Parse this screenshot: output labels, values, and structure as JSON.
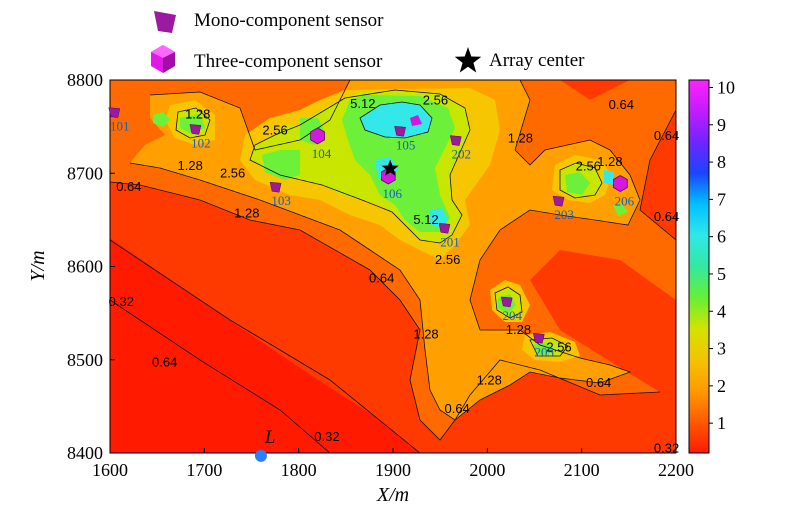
{
  "legend": {
    "mono": "Mono-component sensor",
    "three": "Three-component sensor",
    "center": "Array center"
  },
  "chart_data": {
    "type": "heatmap",
    "xlabel": "X/m",
    "ylabel": "Y/m",
    "xlim": [
      1600,
      2200
    ],
    "ylim": [
      8400,
      8800
    ],
    "x_ticks": [
      "1600",
      "1700",
      "1800",
      "1900",
      "2000",
      "2100",
      "2200"
    ],
    "y_ticks": [
      "8400",
      "8500",
      "8600",
      "8700",
      "8800"
    ],
    "colorbar": {
      "ticks": [
        "1",
        "2",
        "3",
        "4",
        "5",
        "6",
        "7",
        "8",
        "9",
        "10"
      ],
      "range": [
        0.2,
        10.2
      ],
      "colors": [
        "#ff1a00",
        "#ff5a00",
        "#ff9a00",
        "#f3c400",
        "#d4e300",
        "#66f035",
        "#33e8a0",
        "#30e8e8",
        "#00c0ff",
        "#1b44ff",
        "#6f24ff",
        "#c21bff",
        "#ff22ff"
      ]
    },
    "contour_labels": [
      {
        "text": "1.28",
        "x": 1693,
        "y": 8763
      },
      {
        "text": "1.28",
        "x": 1685,
        "y": 8708
      },
      {
        "text": "2.56",
        "x": 1730,
        "y": 8700
      },
      {
        "text": "2.56",
        "x": 1775,
        "y": 8746
      },
      {
        "text": "5.12",
        "x": 1868,
        "y": 8774
      },
      {
        "text": "2.56",
        "x": 1945,
        "y": 8778
      },
      {
        "text": "1.28",
        "x": 2035,
        "y": 8737
      },
      {
        "text": "0.64",
        "x": 2142,
        "y": 8773
      },
      {
        "text": "0.64",
        "x": 2190,
        "y": 8740
      },
      {
        "text": "0.64",
        "x": 1620,
        "y": 8685
      },
      {
        "text": "1.28",
        "x": 1745,
        "y": 8657
      },
      {
        "text": "2.56",
        "x": 2107,
        "y": 8707
      },
      {
        "text": "1.28",
        "x": 2130,
        "y": 8712
      },
      {
        "text": "0.64",
        "x": 2190,
        "y": 8653
      },
      {
        "text": "5.12",
        "x": 1935,
        "y": 8650
      },
      {
        "text": "2.56",
        "x": 1958,
        "y": 8607
      },
      {
        "text": "0.64",
        "x": 1888,
        "y": 8587
      },
      {
        "text": "0.32",
        "x": 1612,
        "y": 8562
      },
      {
        "text": "1.28",
        "x": 2033,
        "y": 8532
      },
      {
        "text": "1.28",
        "x": 1935,
        "y": 8527
      },
      {
        "text": "2.56",
        "x": 2076,
        "y": 8513
      },
      {
        "text": "0.64",
        "x": 1658,
        "y": 8497
      },
      {
        "text": "1.28",
        "x": 2002,
        "y": 8478
      },
      {
        "text": "0.64",
        "x": 2118,
        "y": 8475
      },
      {
        "text": "0.64",
        "x": 1968,
        "y": 8447
      },
      {
        "text": "0.32",
        "x": 1830,
        "y": 8417
      },
      {
        "text": "0.32",
        "x": 2190,
        "y": 8405
      }
    ],
    "mono_sensors": [
      {
        "id": "101",
        "x": 1604,
        "y": 8765
      },
      {
        "id": "102",
        "x": 1690,
        "y": 8747
      },
      {
        "id": "103",
        "x": 1775,
        "y": 8685
      },
      {
        "id": "105",
        "x": 1907,
        "y": 8745
      },
      {
        "id": "202",
        "x": 1966,
        "y": 8735
      },
      {
        "id": "203",
        "x": 2075,
        "y": 8670
      },
      {
        "id": "201",
        "x": 1954,
        "y": 8641
      },
      {
        "id": "204",
        "x": 2020,
        "y": 8562
      },
      {
        "id": "205",
        "x": 2054,
        "y": 8523
      }
    ],
    "three_sensors": [
      {
        "id": "104",
        "x": 1820,
        "y": 8740
      },
      {
        "id": "106",
        "x": 1895,
        "y": 8697
      },
      {
        "id": "206",
        "x": 2141,
        "y": 8689
      }
    ],
    "array_center": {
      "x": 1897,
      "y": 8705
    },
    "point_L": {
      "label": "L",
      "x": 1760,
      "y": 8398
    }
  }
}
